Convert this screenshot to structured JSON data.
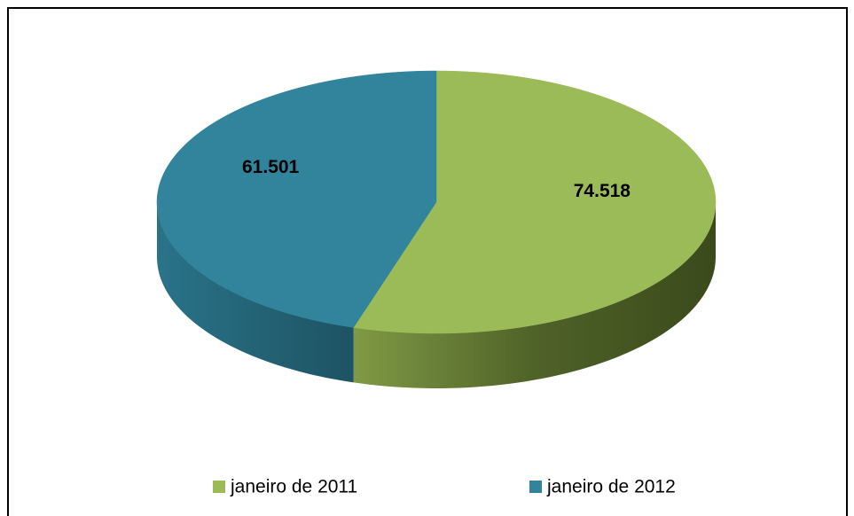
{
  "chart_data": {
    "type": "pie",
    "categories": [
      "janeiro de 2011",
      "janeiro de 2012"
    ],
    "values": [
      74518,
      61501
    ],
    "value_labels": [
      "74.518",
      "61.501"
    ],
    "colors": [
      "#9bbb59",
      "#31849b"
    ],
    "legend": "bottom"
  }
}
